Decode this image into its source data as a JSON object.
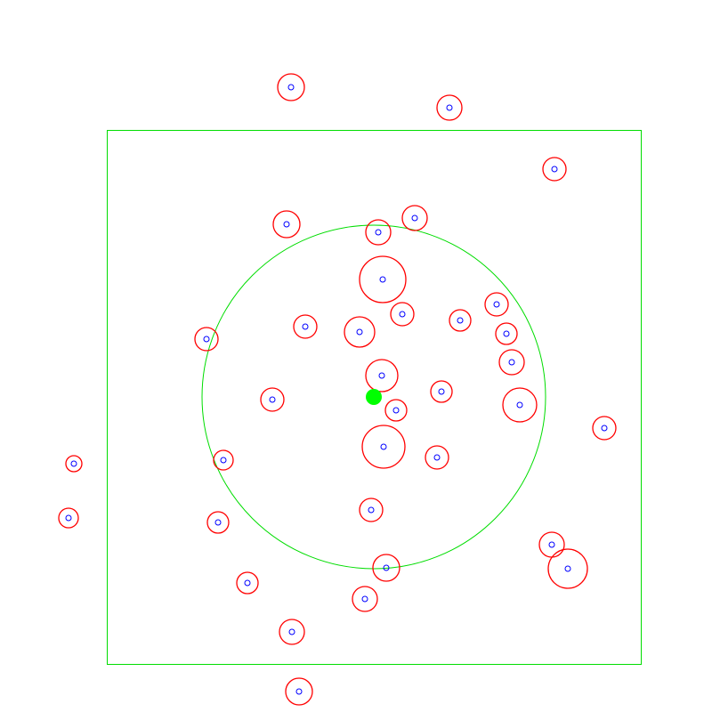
{
  "colors": {
    "background": "#ffffff",
    "region": "#00dd00",
    "search_circle": "#00dd00",
    "center_dot": "#00ff00",
    "particle_outer": "#ff0000",
    "particle_inner": "#0000ff"
  }
}
